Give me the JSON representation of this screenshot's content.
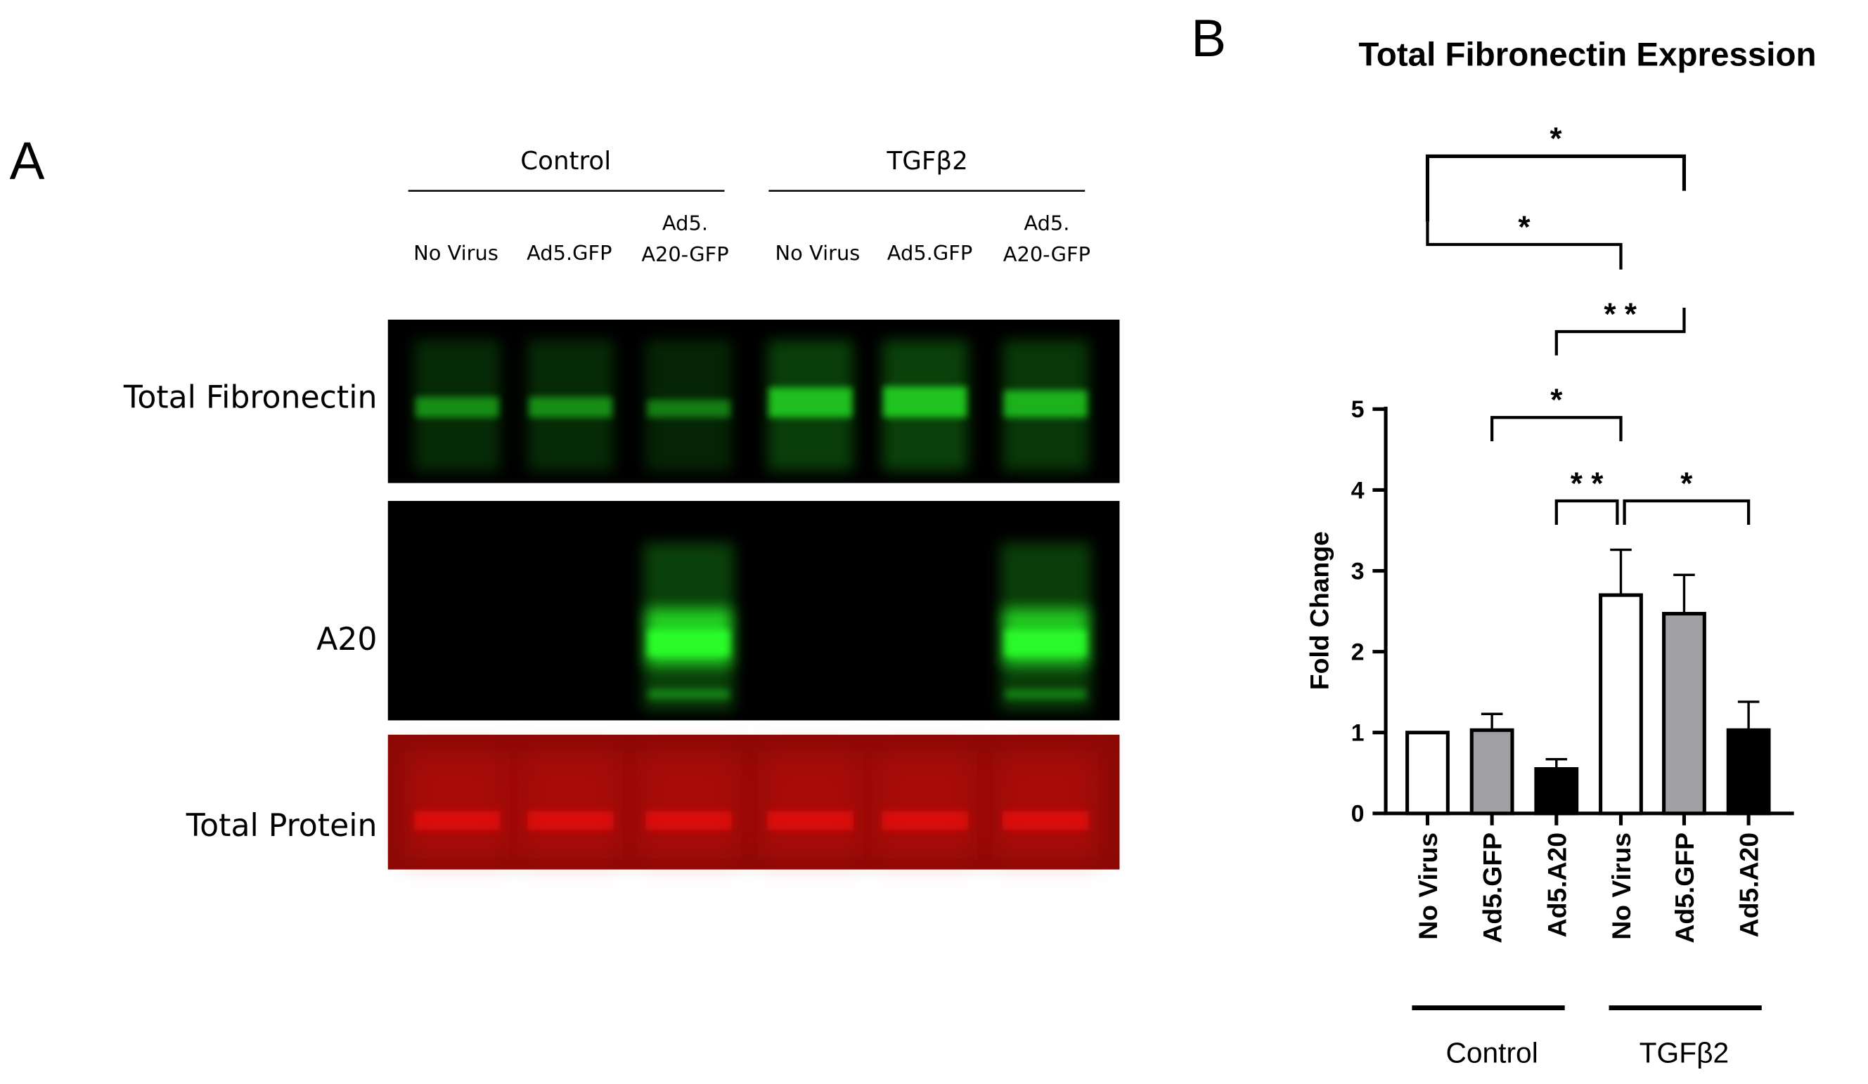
{
  "panel_a": {
    "letter": "A",
    "groups": [
      "Control",
      "TGFβ2"
    ],
    "lanes": [
      {
        "line1": "No Virus",
        "line2": ""
      },
      {
        "line1": "Ad5.GFP",
        "line2": ""
      },
      {
        "line1": "Ad5.",
        "line2": "A20-GFP"
      },
      {
        "line1": "No Virus",
        "line2": ""
      },
      {
        "line1": "Ad5.GFP",
        "line2": ""
      },
      {
        "line1": "Ad5.",
        "line2": "A20-GFP"
      }
    ],
    "rows": [
      "Total Fibronectin",
      "A20",
      "Total Protein"
    ],
    "row_colors": {
      "fibronectin": "#23d323",
      "a20": "#2aff2a",
      "protein": "#e01010",
      "blot_bg": "#000000",
      "protein_bg": "#8a0a06"
    },
    "fibronectin_band_intensity": [
      0.45,
      0.45,
      0.3,
      0.95,
      1.0,
      0.8
    ],
    "a20_band_intensity": [
      0,
      0,
      1.0,
      0,
      0,
      0.95
    ]
  },
  "panel_b": {
    "letter": "B"
  },
  "chart_data": {
    "type": "bar",
    "title": "Total Fibronectin Expression",
    "ylabel": "Fold Change",
    "xlabel": "",
    "ylim": [
      0,
      5
    ],
    "yticks": [
      "0",
      "1",
      "2",
      "3",
      "4",
      "5"
    ],
    "categories": [
      "No Virus",
      "Ad5.GFP",
      "Ad5.A20",
      "No Virus",
      "Ad5.GFP",
      "Ad5.A20"
    ],
    "values": [
      1.0,
      1.03,
      0.55,
      2.7,
      2.47,
      1.03
    ],
    "errors": [
      0.0,
      0.2,
      0.12,
      0.56,
      0.48,
      0.35
    ],
    "bar_fills": [
      "#ffffff",
      "#a0a0a4",
      "#000000",
      "#ffffff",
      "#a0a0a4",
      "#000000"
    ],
    "groups": [
      {
        "label": "Control",
        "categories": [
          0,
          1,
          2
        ]
      },
      {
        "label": "TGFβ2",
        "categories": [
          3,
          4,
          5
        ]
      }
    ],
    "significance": [
      {
        "from": 0,
        "to": 4,
        "label": "*"
      },
      {
        "from": 0,
        "to": 3,
        "label": "*"
      },
      {
        "from": 2,
        "to": 4,
        "label": "* *"
      },
      {
        "from": 1,
        "to": 3,
        "label": "*"
      },
      {
        "from": 2,
        "to": 3,
        "label": "* *"
      },
      {
        "from": 3,
        "to": 5,
        "label": "*"
      }
    ],
    "grid": false,
    "legend": "none"
  }
}
